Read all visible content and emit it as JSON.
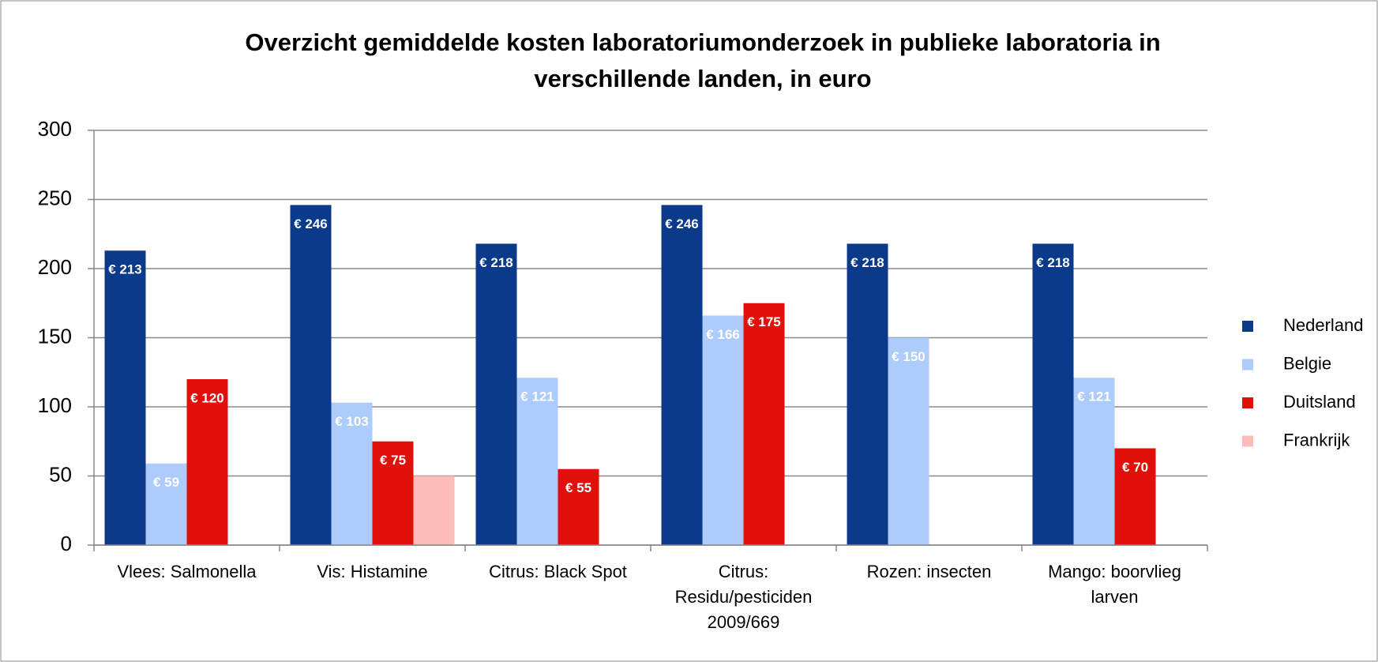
{
  "chart_data": {
    "type": "bar",
    "title": "Overzicht gemiddelde kosten laboratoriumonderzoek in publieke laboratoria in verschillende landen, in euro",
    "categories": [
      "Vlees: Salmonella",
      "Vis: Histamine",
      "Citrus: Black Spot",
      "Citrus: Residu/pesticiden 2009/669",
      "Rozen: insecten",
      "Mango: boorvlieg larven"
    ],
    "series": [
      {
        "name": "Nederland",
        "color": "#0c3a8a",
        "values": [
          213,
          246,
          218,
          246,
          218,
          218
        ],
        "value_labels": [
          "€ 213",
          "€ 246",
          "€ 218",
          "€ 246",
          "€ 218",
          "€ 218"
        ]
      },
      {
        "name": "Belgie",
        "color": "#adcbfb",
        "values": [
          59,
          103,
          121,
          166,
          150,
          121
        ],
        "value_labels": [
          "€ 59",
          "€ 103",
          "€ 121",
          "€ 166",
          "€ 150",
          "€ 121"
        ]
      },
      {
        "name": "Duitsland",
        "color": "#e0100a",
        "values": [
          120,
          75,
          55,
          175,
          null,
          70
        ],
        "value_labels": [
          "€ 120",
          "€ 75",
          "€ 55",
          "€ 175",
          null,
          "€ 70"
        ]
      },
      {
        "name": "Frankrijk",
        "color": "#fcbcb8",
        "values": [
          null,
          50,
          null,
          null,
          null,
          null
        ]
      }
    ],
    "ylim": [
      0,
      300
    ],
    "yticks": [
      0,
      50,
      100,
      150,
      200,
      250,
      300
    ],
    "grid": true,
    "legend": "right"
  }
}
